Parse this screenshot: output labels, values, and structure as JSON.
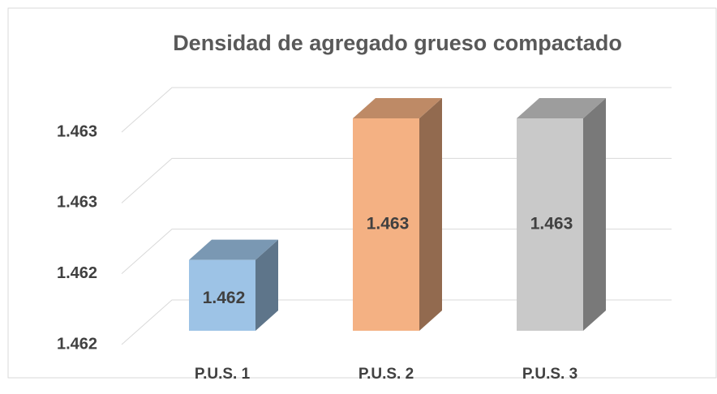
{
  "chart_data": {
    "type": "bar3d",
    "title": "Densidad de agregado grueso compactado",
    "categories": [
      "P.U.S. 1",
      "P.U.S. 2",
      "P.U.S. 3"
    ],
    "values": [
      1.4622,
      1.463,
      1.463
    ],
    "value_labels": [
      "1.462",
      "1.463",
      "1.463"
    ],
    "colors": [
      "#9dc3e6",
      "#f4b183",
      "#c9c9c9"
    ],
    "ylim": [
      1.4618,
      1.463
    ],
    "yticks": [
      {
        "value": 1.4618,
        "label": "1.462"
      },
      {
        "value": 1.4622,
        "label": "1.462"
      },
      {
        "value": 1.4626,
        "label": "1.463"
      },
      {
        "value": 1.463,
        "label": "1.463"
      }
    ],
    "grid": true
  }
}
